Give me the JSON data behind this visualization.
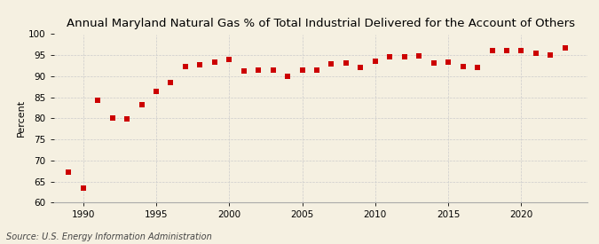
{
  "title": "Annual Maryland Natural Gas % of Total Industrial Delivered for the Account of Others",
  "ylabel": "Percent",
  "source": "Source: U.S. Energy Information Administration",
  "years": [
    1989,
    1990,
    1991,
    1992,
    1993,
    1994,
    1995,
    1996,
    1997,
    1998,
    1999,
    2000,
    2001,
    2002,
    2003,
    2004,
    2005,
    2006,
    2007,
    2008,
    2009,
    2010,
    2011,
    2012,
    2013,
    2014,
    2015,
    2016,
    2017,
    2018,
    2019,
    2020,
    2021,
    2022,
    2023
  ],
  "values": [
    67.2,
    63.5,
    84.2,
    80.0,
    79.8,
    83.2,
    86.3,
    88.5,
    92.3,
    92.8,
    93.3,
    94.0,
    91.3,
    91.5,
    91.5,
    90.0,
    91.5,
    91.5,
    93.0,
    93.2,
    92.0,
    93.5,
    94.7,
    94.6,
    94.8,
    93.2,
    93.3,
    92.3,
    92.0,
    96.0,
    96.0,
    96.1,
    95.5,
    95.0,
    96.7
  ],
  "marker_color": "#cc0000",
  "marker_size": 16,
  "background_color": "#f5f0e1",
  "grid_color": "#cccccc",
  "ylim": [
    60,
    100
  ],
  "yticks": [
    60,
    65,
    70,
    75,
    80,
    85,
    90,
    95,
    100
  ],
  "xlim": [
    1988.0,
    2024.5
  ],
  "xticks": [
    1990,
    1995,
    2000,
    2005,
    2010,
    2015,
    2020
  ],
  "title_fontsize": 9.5,
  "label_fontsize": 8,
  "tick_fontsize": 7.5,
  "source_fontsize": 7
}
